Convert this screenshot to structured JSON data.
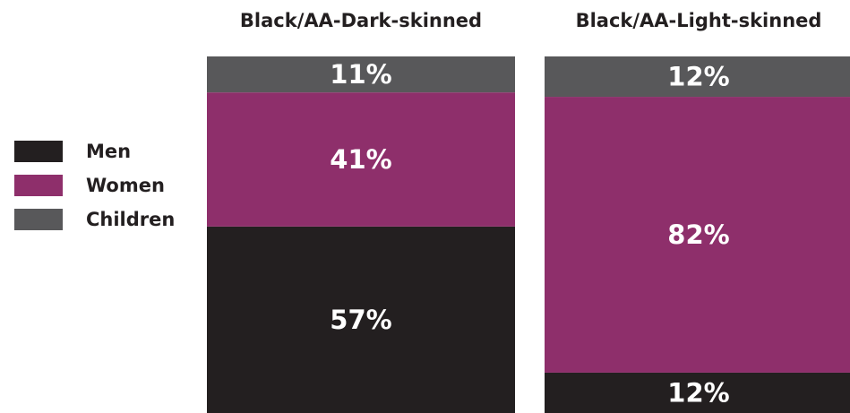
{
  "chart_data": {
    "type": "bar",
    "stacked": true,
    "normalized_to_100_percent": true,
    "categories": [
      "Black/AA-Dark-skinned",
      "Black/AA-Light-skinned"
    ],
    "series": [
      {
        "name": "Men",
        "color": "#231f20",
        "values": [
          57,
          12
        ],
        "labels": [
          "57%",
          "12%"
        ]
      },
      {
        "name": "Women",
        "color": "#8e2f6b",
        "values": [
          41,
          82
        ],
        "labels": [
          "41%",
          "82%"
        ]
      },
      {
        "name": "Children",
        "color": "#58585a",
        "values": [
          11,
          12
        ],
        "labels": [
          "11%",
          "12%"
        ]
      }
    ],
    "legend_position": "left",
    "grid": false,
    "axes_visible": false
  }
}
